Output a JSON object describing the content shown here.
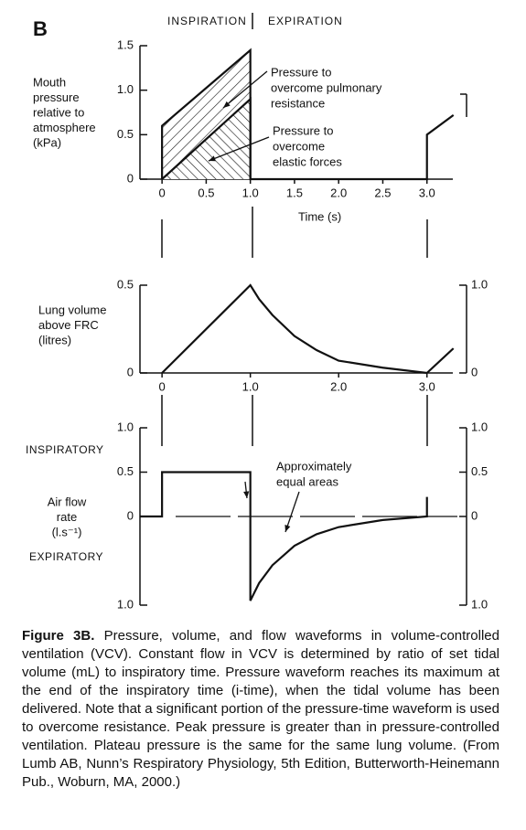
{
  "panel_label": "B",
  "chart_data": [
    {
      "type": "line",
      "phase_labels": [
        "INSPIRATION",
        "EXPIRATION"
      ],
      "y_label": [
        "Mouth",
        "pressure",
        "relative to",
        "atmosphere",
        "(kPa)"
      ],
      "x_label": "Time (s)",
      "annotations": [
        {
          "lines": [
            "Pressure to",
            "overcome pulmonary",
            "resistance"
          ]
        },
        {
          "lines": [
            "Pressure to",
            "overcome",
            "elastic forces"
          ]
        }
      ],
      "xlim": [
        -0.25,
        3.5
      ],
      "ylim": [
        0,
        1.5
      ],
      "xticks": [
        0,
        0.5,
        {
          "value": 1,
          "label": "1.0"
        },
        1.5,
        {
          "value": 2,
          "label": "2.0"
        },
        2.5,
        {
          "value": 3,
          "label": "3.0"
        }
      ],
      "yticks": [
        0,
        0.5,
        {
          "value": 1,
          "label": "1.0"
        },
        1.5
      ],
      "series": [
        {
          "color": "#111111",
          "x": [
            0,
            0,
            1,
            1,
            3,
            3,
            3.3
          ],
          "values": [
            0,
            0.6,
            1.45,
            0,
            0,
            0.5,
            0.72
          ]
        },
        {
          "color": "#111111",
          "x": [
            0,
            1,
            1
          ],
          "values": [
            0,
            0.9,
            0
          ]
        }
      ]
    },
    {
      "type": "line",
      "y_label": [
        "Lung volume",
        "above FRC",
        "(litres)"
      ],
      "xlim": [
        -0.25,
        3.5
      ],
      "ylim": [
        0,
        0.5
      ],
      "y2lim": [
        0,
        1
      ],
      "xticks": [
        0,
        {
          "value": 1,
          "label": "1.0"
        },
        {
          "value": 2,
          "label": "2.0"
        },
        {
          "value": 3,
          "label": "3.0"
        }
      ],
      "yticks": [
        0,
        0.5
      ],
      "y2ticks": [
        0,
        {
          "value": 1,
          "label": "1.0"
        }
      ],
      "series": [
        {
          "color": "#111111",
          "x": [
            0,
            1,
            1.1,
            1.25,
            1.5,
            1.75,
            2,
            2.5,
            3,
            3.3
          ],
          "values": [
            0,
            0.5,
            0.42,
            0.33,
            0.21,
            0.13,
            0.07,
            0.03,
            0,
            0.14
          ]
        }
      ]
    },
    {
      "type": "line",
      "y_label": [
        "Air flow",
        "rate",
        "(l.s⁻¹)"
      ],
      "direction_labels": [
        "INSPIRATORY",
        "EXPIRATORY"
      ],
      "annotations": [
        {
          "lines": [
            "Approximately",
            "equal areas"
          ]
        }
      ],
      "xlim": [
        -0.25,
        3.5
      ],
      "ylim": [
        -1,
        1
      ],
      "y2lim": [
        -1,
        1
      ],
      "yticks": [
        {
          "value": -1,
          "label": "1.0"
        },
        0,
        0.5,
        {
          "value": 1,
          "label": "1.0"
        }
      ],
      "y2ticks": [
        {
          "value": -1,
          "label": "1.0"
        },
        0,
        0.5,
        {
          "value": 1,
          "label": "1.0"
        }
      ],
      "series": [
        {
          "color": "#111111",
          "x": [
            -0.25,
            0,
            0,
            1,
            1,
            1.1,
            1.25,
            1.5,
            1.75,
            2,
            2.5,
            3,
            3,
            3
          ],
          "values": [
            0,
            0,
            0.5,
            0.5,
            -0.95,
            -0.75,
            -0.55,
            -0.33,
            -0.2,
            -0.12,
            -0.04,
            0,
            0.22,
            0
          ]
        }
      ]
    }
  ],
  "caption": {
    "label": "Figure 3B.",
    "text": "Pressure, volume, and flow waveforms in volume-controlled ventilation (VCV). Constant flow in VCV is determined by ratio of set tidal volume (mL) to inspiratory time. Pressure waveform reaches its maximum at the end of the inspiratory time (i-time), when the tidal volume has been delivered. Note that a significant portion of the pressure-time waveform is used to overcome resistance. Peak pressure is greater than in pressure-controlled ventilation. Plateau pressure is the same for the same lung volume. (From Lumb AB, Nunn’s Respiratory Physiology, 5th Edition, Butterworth-Heinemann Pub., Woburn, MA, 2000.)"
  }
}
